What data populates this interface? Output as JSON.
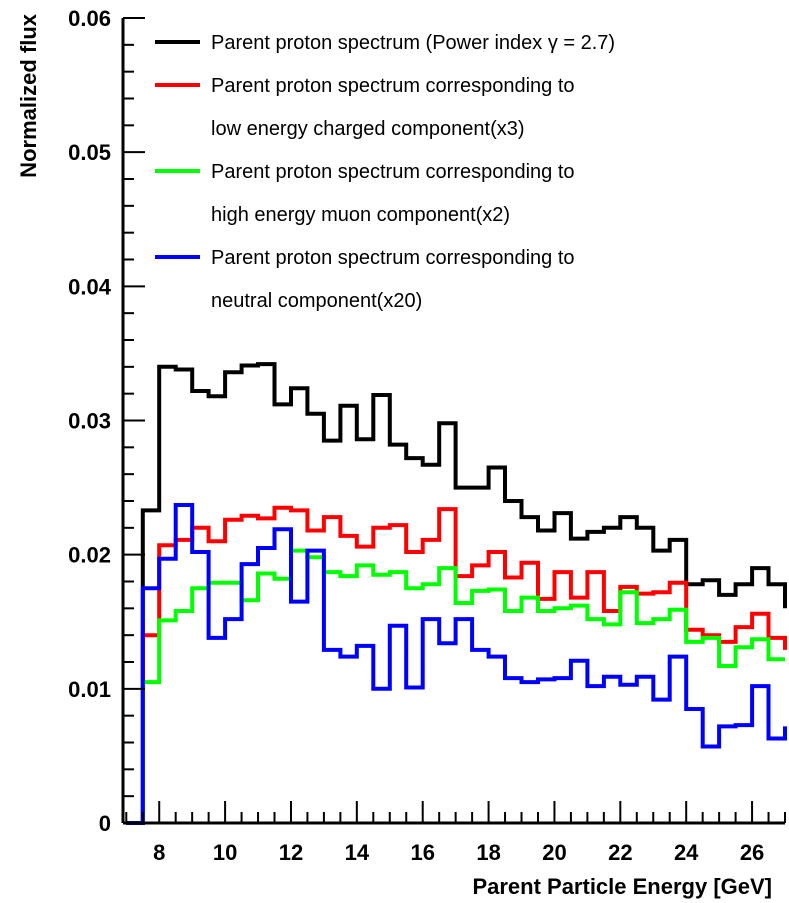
{
  "chart_data": {
    "type": "line",
    "title": "",
    "xlabel": "Parent Particle Energy [GeV]",
    "ylabel": "Normalized flux",
    "xlim": [
      6.9,
      27.0
    ],
    "ylim": [
      0,
      0.06
    ],
    "x_ticks": [
      8,
      10,
      12,
      14,
      16,
      18,
      20,
      22,
      24,
      26
    ],
    "x_tick_labels": [
      "8",
      "10",
      "12",
      "14",
      "16",
      "18",
      "20",
      "22",
      "24",
      "26"
    ],
    "y_ticks": [
      0,
      0.01,
      0.02,
      0.03,
      0.04,
      0.05,
      0.06
    ],
    "y_tick_labels": [
      "0",
      "0.01",
      "0.02",
      "0.03",
      "0.04",
      "0.05",
      "0.06"
    ],
    "grid": false,
    "legend_position": "top-right",
    "bin_edges": [
      7.0,
      7.5,
      8.0,
      8.5,
      9.0,
      9.5,
      10.0,
      10.5,
      11.0,
      11.5,
      12.0,
      12.5,
      13.0,
      13.5,
      14.0,
      14.5,
      15.0,
      15.5,
      16.0,
      16.5,
      17.0,
      17.5,
      18.0,
      18.5,
      19.0,
      19.5,
      20.0,
      20.5,
      21.0,
      21.5,
      22.0,
      22.5,
      23.0,
      23.5,
      24.0,
      24.5,
      25.0,
      25.5,
      26.0,
      26.5,
      27.0
    ],
    "series": [
      {
        "name": "Parent proton spectrum (Power index γ = 2.7)",
        "color": "#000000",
        "values": [
          0,
          0.0233,
          0.034,
          0.0338,
          0.0322,
          0.0318,
          0.0336,
          0.0341,
          0.0342,
          0.0312,
          0.0324,
          0.0305,
          0.0285,
          0.0311,
          0.0286,
          0.0319,
          0.0282,
          0.0272,
          0.0267,
          0.0298,
          0.025,
          0.025,
          0.0265,
          0.024,
          0.0228,
          0.0218,
          0.0231,
          0.0212,
          0.0217,
          0.022,
          0.0228,
          0.022,
          0.0203,
          0.0211,
          0.0178,
          0.0181,
          0.017,
          0.0178,
          0.019,
          0.0178,
          0.016
        ]
      },
      {
        "name": "Parent proton spectrum corresponding to low energy charged component(x3)",
        "color": "#ff0000",
        "values": [
          0,
          0.014,
          0.0207,
          0.0211,
          0.022,
          0.021,
          0.0226,
          0.0229,
          0.0227,
          0.0235,
          0.0233,
          0.0218,
          0.0228,
          0.0214,
          0.0206,
          0.022,
          0.0222,
          0.0202,
          0.0211,
          0.0234,
          0.0184,
          0.0192,
          0.0202,
          0.0183,
          0.0194,
          0.0167,
          0.0187,
          0.0168,
          0.0187,
          0.0158,
          0.0176,
          0.0171,
          0.0172,
          0.0179,
          0.0144,
          0.014,
          0.0135,
          0.0146,
          0.0156,
          0.0138,
          0.0129
        ]
      },
      {
        "name": "Parent proton spectrum corresponding to high energy muon component(x2)",
        "color": "#00ff00",
        "values": [
          0,
          0.0105,
          0.0151,
          0.0158,
          0.0175,
          0.0179,
          0.0179,
          0.0166,
          0.0186,
          0.0182,
          0.0203,
          0.0198,
          0.0187,
          0.0184,
          0.0192,
          0.0185,
          0.0187,
          0.0175,
          0.0178,
          0.019,
          0.0164,
          0.0173,
          0.0174,
          0.0158,
          0.0168,
          0.0158,
          0.016,
          0.0162,
          0.0152,
          0.0148,
          0.0172,
          0.0149,
          0.0152,
          0.0159,
          0.0135,
          0.0138,
          0.0117,
          0.0131,
          0.0137,
          0.0122,
          0.0122
        ]
      },
      {
        "name": "Parent proton spectrum corresponding to neutral component(x20)",
        "color": "#0000ff",
        "values": [
          0,
          0.0175,
          0.0197,
          0.0237,
          0.0202,
          0.0138,
          0.0152,
          0.0193,
          0.0205,
          0.0219,
          0.0165,
          0.0203,
          0.0129,
          0.0124,
          0.0132,
          0.01,
          0.0147,
          0.0101,
          0.0152,
          0.0134,
          0.0152,
          0.0129,
          0.0124,
          0.0108,
          0.0105,
          0.0107,
          0.0108,
          0.0121,
          0.0102,
          0.0109,
          0.0103,
          0.0109,
          0.0092,
          0.0124,
          0.0085,
          0.0057,
          0.0072,
          0.0073,
          0.0102,
          0.0063,
          0.0072
        ]
      }
    ]
  }
}
